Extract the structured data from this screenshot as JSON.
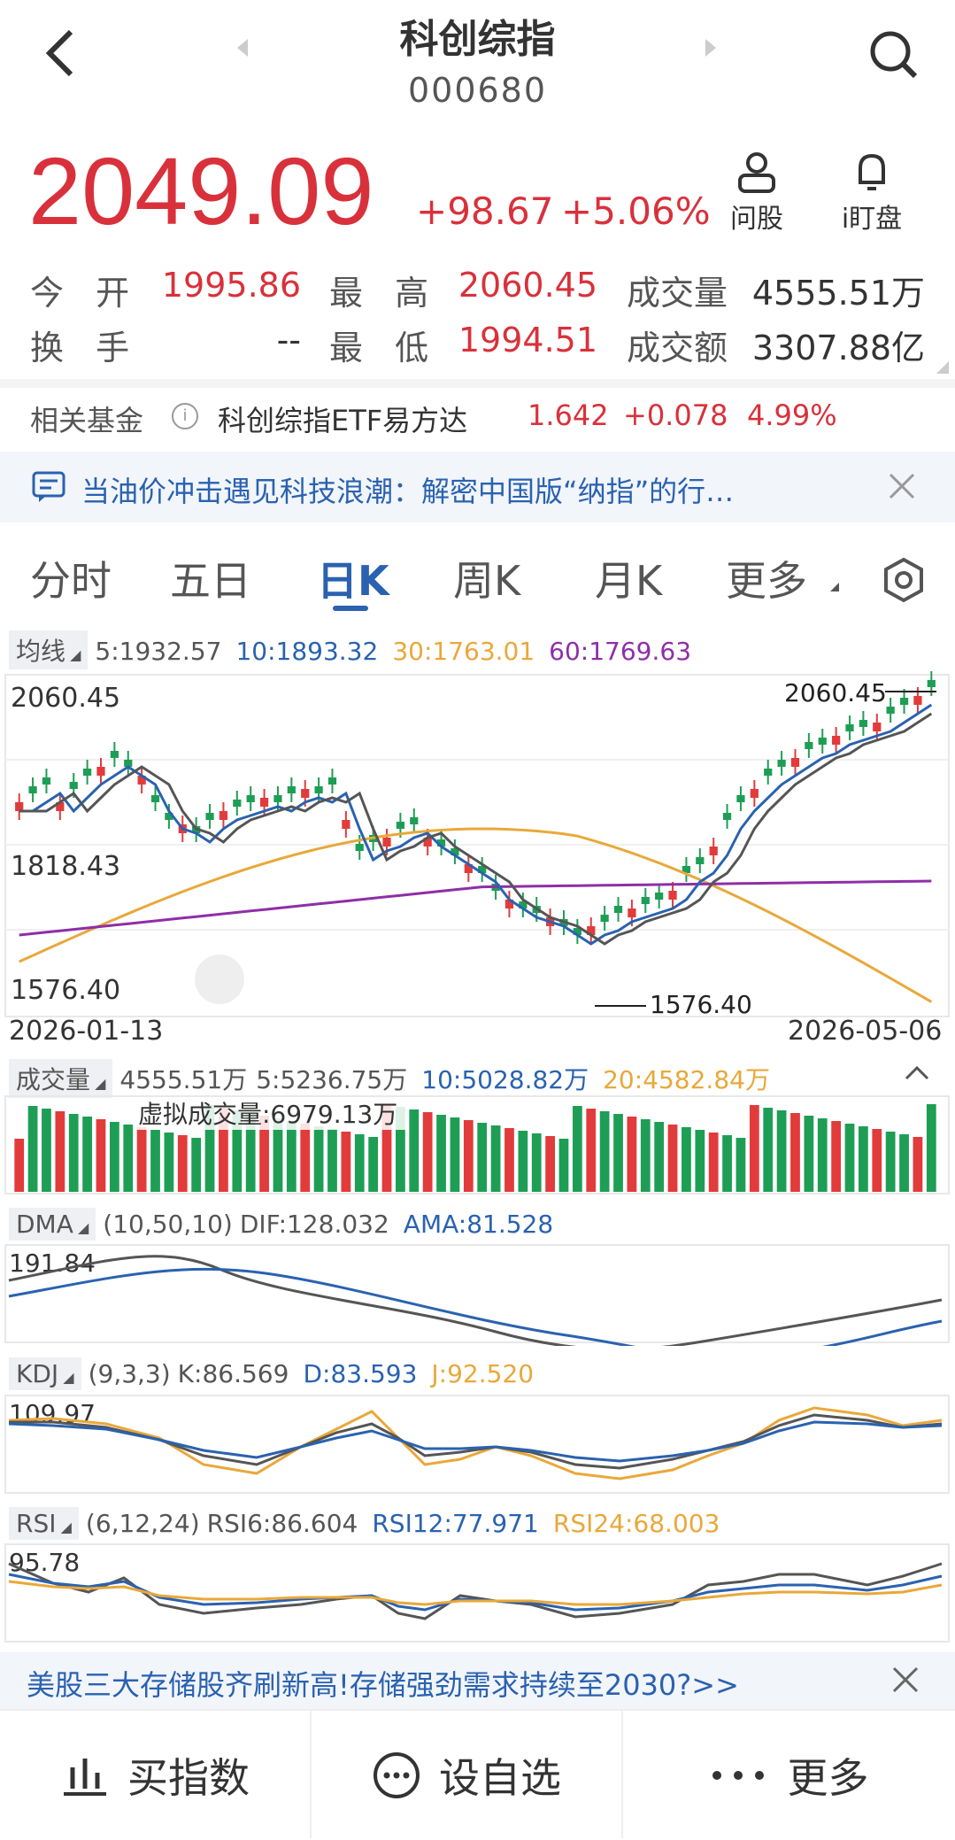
{
  "header": {
    "title": "科创综指",
    "code": "000680",
    "ask_label": "问股",
    "watch_label": "i盯盘"
  },
  "price": {
    "last": "2049.09",
    "change": "+98.67",
    "change_pct": "+5.06%"
  },
  "stats": {
    "open_label": "今 开",
    "open": "1995.86",
    "high_label": "最 高",
    "high": "2060.45",
    "volume_label": "成交量",
    "volume": "4555.51万",
    "turnover_label": "换 手",
    "turnover": "--",
    "low_label": "最 低",
    "low": "1994.51",
    "amount_label": "成交额",
    "amount": "3307.88亿"
  },
  "fund": {
    "label": "相关基金",
    "name": "科创综指ETF易方达",
    "price": "1.642",
    "change": "+0.078",
    "pct": "4.99%"
  },
  "news": {
    "text": "当油价冲击遇见科技浪潮：解密中国版“纳指”的行…"
  },
  "tabs": [
    "分时",
    "五日",
    "日K",
    "周K",
    "月K",
    "更多"
  ],
  "ma": {
    "label": "均线",
    "ma5": "5:1932.57",
    "ma10": "10:1893.32",
    "ma30": "30:1763.01",
    "ma60": "60:1769.63"
  },
  "kline": {
    "y_top": "2060.45",
    "y_mid": "1818.43",
    "y_bot": "1576.40",
    "high_mark": "2060.45",
    "low_mark": "1576.40",
    "date_start": "2026-01-13",
    "date_end": "2026-05-06"
  },
  "vol": {
    "label": "成交量",
    "value": "4555.51万",
    "ma5": "5:5236.75万",
    "ma10": "10:5028.82万",
    "ma20": "20:4582.84万",
    "virtual": "虚拟成交量:6979.13万"
  },
  "dma": {
    "label": "DMA",
    "params": "(10,50,10)",
    "dif": "DIF:128.032",
    "ama": "AMA:81.528",
    "y_top": "191.84"
  },
  "kdj": {
    "label": "KDJ",
    "params": "(9,3,3)",
    "k": "K:86.569",
    "d": "D:83.593",
    "j": "J:92.520",
    "y_top": "109.97"
  },
  "rsi": {
    "label": "RSI",
    "params": "(6,12,24)",
    "rsi6": "RSI6:86.604",
    "rsi12": "RSI12:77.971",
    "rsi24": "RSI24:68.003",
    "y_top": "95.78"
  },
  "ad": {
    "text": "美股三大存储股齐刷新高!存储强劲需求持续至2030?>>"
  },
  "bottom": {
    "buy": "买指数",
    "watchlist": "设自选",
    "more": "更多"
  },
  "colors": {
    "up": "#e23b3b",
    "down": "#1e9e55",
    "ma5": "#555555",
    "ma10": "#2a62b0",
    "ma30": "#e9a83a",
    "ma60": "#8e2ea8"
  }
}
